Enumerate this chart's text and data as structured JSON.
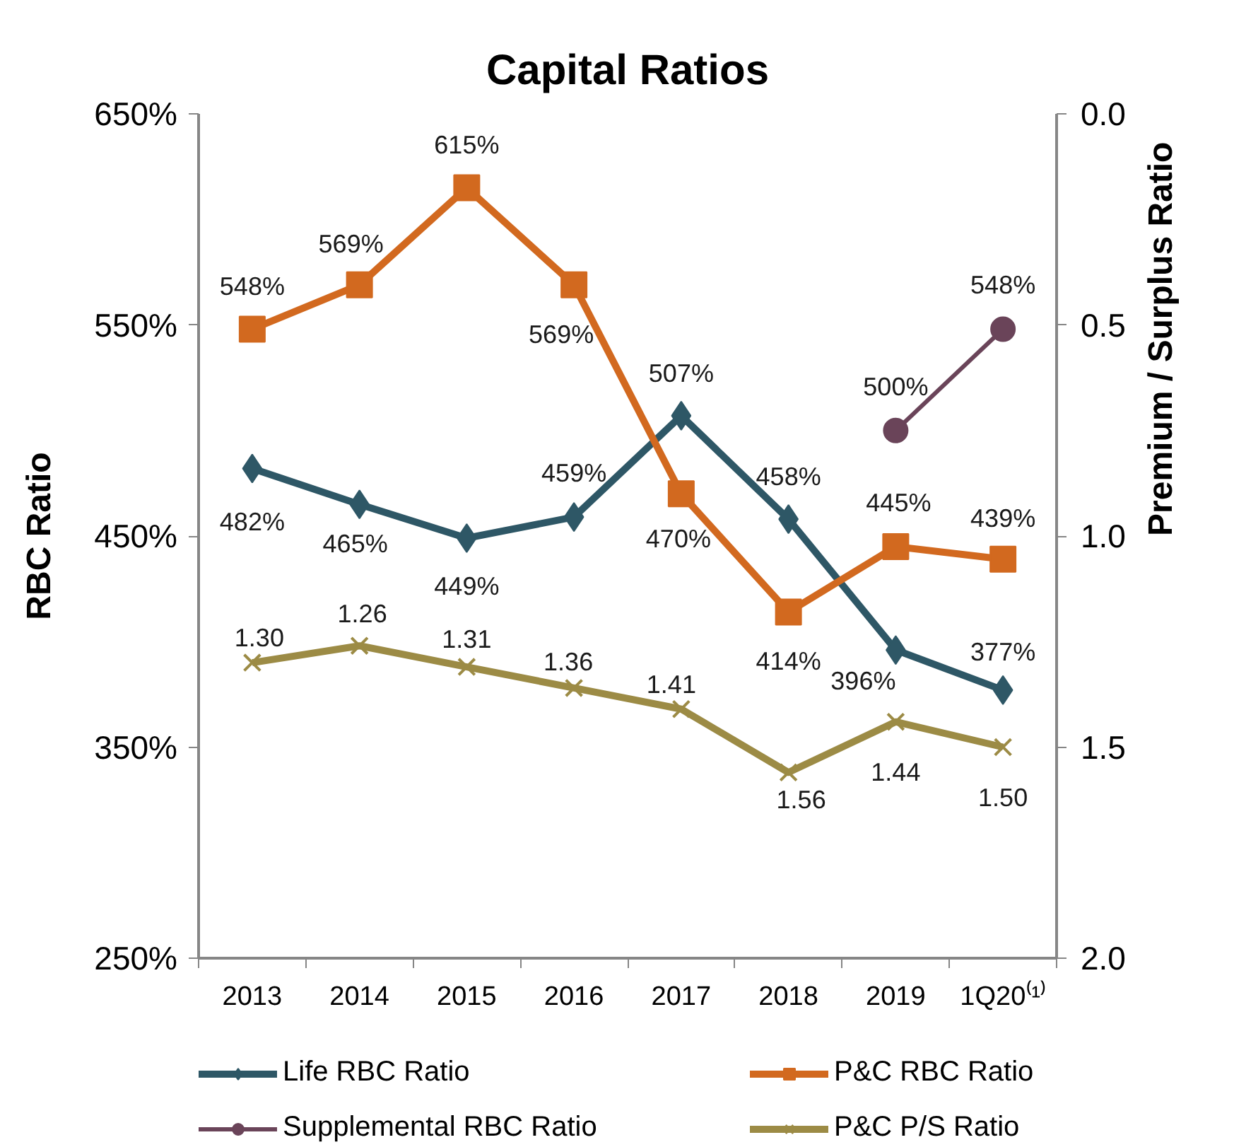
{
  "chart_data": {
    "type": "line",
    "title": "Capital Ratios",
    "ylabel": "RBC Ratio",
    "y2label": "Premium / Surplus Ratio",
    "categories": [
      "2013",
      "2014",
      "2015",
      "2016",
      "2017",
      "2018",
      "2019",
      "1Q20⁽¹⁾"
    ],
    "ylim": [
      250,
      650
    ],
    "yticks": [
      {
        "value": 250,
        "label": "250%"
      },
      {
        "value": 350,
        "label": "350%"
      },
      {
        "value": 450,
        "label": "450%"
      },
      {
        "value": 550,
        "label": "550%"
      },
      {
        "value": 650,
        "label": "650%"
      }
    ],
    "y2lim": [
      2.0,
      0.0
    ],
    "y2ticks": [
      {
        "value": 0,
        "label": "0.0"
      },
      0.5,
      {
        "value": 1,
        "label": "1.0"
      },
      1.5,
      {
        "value": 2,
        "label": "2.0"
      }
    ],
    "grid": false,
    "legend": "bottom",
    "series": [
      {
        "name": "Life RBC Ratio",
        "color": "#2e5766",
        "marker": "diamond",
        "values": [
          482,
          465,
          449,
          459,
          507,
          458,
          396,
          377
        ],
        "value_labels": [
          "482%",
          "465%",
          "449%",
          "459%",
          "507%",
          "458%",
          "396%",
          "377%"
        ]
      },
      {
        "name": "P&C RBC Ratio",
        "color": "#d2691f",
        "marker": "square",
        "values": [
          548,
          569,
          615,
          569,
          470,
          414,
          445,
          439
        ],
        "value_labels": [
          "548%",
          "569%",
          "615%",
          "569%",
          "470%",
          "414%",
          "445%",
          "439%"
        ]
      },
      {
        "name": "Supplemental RBC Ratio",
        "color": "#6a4459",
        "marker": "circle",
        "values": [
          null,
          null,
          null,
          null,
          null,
          null,
          500,
          548
        ],
        "value_labels": [
          null,
          null,
          null,
          null,
          null,
          null,
          "500%",
          "548%"
        ]
      },
      {
        "name": "P&C P/S Ratio",
        "color": "#9c8b45",
        "marker": "cross",
        "axis": "y2",
        "values": [
          1.3,
          1.26,
          1.31,
          1.36,
          1.41,
          1.56,
          1.44,
          1.5
        ],
        "value_labels": [
          "1.30",
          "1.26",
          "1.31",
          "1.36",
          "1.41",
          "1.56",
          "1.44",
          "1.50"
        ]
      }
    ]
  }
}
